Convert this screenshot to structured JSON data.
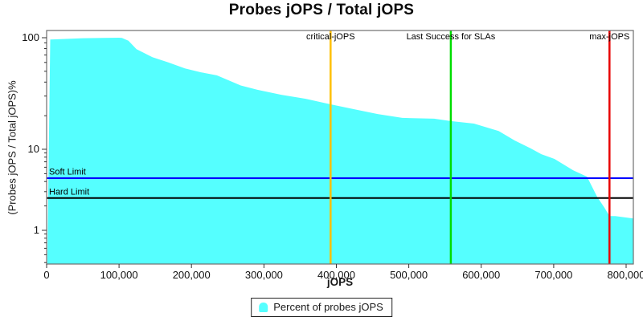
{
  "title": "Probes jOPS / Total jOPS",
  "legend": {
    "label": "Percent of probes jOPS"
  },
  "colors": {
    "series_fill": "#55FFFF",
    "critical_line": "#FFC000",
    "last_success_line": "#00DD00",
    "max_line": "#E80000",
    "soft_limit_line": "#0000FF",
    "hard_limit_line": "#000000",
    "plot_border": "#6e6e6e",
    "tick": "#333333",
    "text": "#111111"
  },
  "chart_data": {
    "type": "area",
    "title": "Probes jOPS / Total jOPS",
    "xlabel": "jOPS",
    "ylabel": "(Probes jOPS / Total jOPS)%",
    "y_scale": "log",
    "grid": false,
    "legend_position": "bottom",
    "x_range": [
      0,
      810000
    ],
    "y_range": [
      0.38,
      116
    ],
    "x_ticks": [
      {
        "value": 0,
        "label": "0"
      },
      {
        "value": 100000,
        "label": "100,000"
      },
      {
        "value": 200000,
        "label": "200,000"
      },
      {
        "value": 300000,
        "label": "300,000"
      },
      {
        "value": 400000,
        "label": "400,000"
      },
      {
        "value": 500000,
        "label": "500,000"
      },
      {
        "value": 600000,
        "label": "600,000"
      },
      {
        "value": 700000,
        "label": "700,000"
      },
      {
        "value": 800000,
        "label": "800,000"
      }
    ],
    "y_ticks": [
      {
        "value": 100,
        "label": "100"
      },
      {
        "value": 10,
        "label": "10"
      },
      {
        "value": 1,
        "label": "1"
      }
    ],
    "series": [
      {
        "name": "Percent of probes jOPS",
        "color": "#55FFFF",
        "points": [
          [
            1000,
            0.4
          ],
          [
            5000,
            96.5
          ],
          [
            50000,
            99.0
          ],
          [
            100000,
            100.0
          ],
          [
            104000,
            99.5
          ],
          [
            113000,
            94.0
          ],
          [
            124000,
            79.0
          ],
          [
            146000,
            67.0
          ],
          [
            168000,
            60.0
          ],
          [
            191000,
            53.0
          ],
          [
            213000,
            49.0
          ],
          [
            235000,
            46.0
          ],
          [
            268000,
            37.3
          ],
          [
            291000,
            34.1
          ],
          [
            324000,
            30.8
          ],
          [
            357000,
            28.4
          ],
          [
            392000,
            25.3
          ],
          [
            424000,
            22.9
          ],
          [
            457000,
            20.7
          ],
          [
            491000,
            19.1
          ],
          [
            535000,
            18.8
          ],
          [
            558000,
            17.9
          ],
          [
            590000,
            17.0
          ],
          [
            624000,
            14.6
          ],
          [
            646000,
            12.0
          ],
          [
            668000,
            10.2
          ],
          [
            683000,
            8.7
          ],
          [
            701000,
            7.6
          ],
          [
            727000,
            5.5
          ],
          [
            746000,
            4.6
          ],
          [
            760000,
            2.6
          ],
          [
            770000,
            1.9
          ],
          [
            777000,
            1.5
          ],
          [
            785000,
            1.5
          ],
          [
            810000,
            1.4
          ]
        ]
      }
    ],
    "vertical_markers": [
      {
        "label": "critical-jOPS",
        "jops": 392000,
        "color": "#FFC000"
      },
      {
        "label": "Last Success for SLAs",
        "jops": 558000,
        "color": "#00DD00"
      },
      {
        "label": "max-jOPS",
        "jops": 777000,
        "color": "#E80000"
      }
    ],
    "horizontal_markers": [
      {
        "label": "Soft Limit",
        "percent": 4.4,
        "color": "#0000FF"
      },
      {
        "label": "Hard Limit",
        "percent": 2.5,
        "color": "#000000"
      }
    ]
  }
}
